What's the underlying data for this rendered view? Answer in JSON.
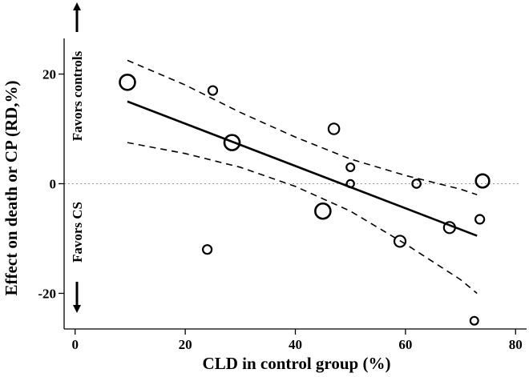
{
  "chart_data": {
    "type": "scatter",
    "title": "",
    "xlabel": "CLD in control group (%)",
    "ylabel": "Effect on death or CP (RD,%)",
    "xlim": [
      -2,
      82
    ],
    "ylim": [
      -26.5,
      26.5
    ],
    "xticks": [
      0,
      20,
      40,
      60,
      80
    ],
    "yticks": [
      -20,
      0,
      20
    ],
    "xtick_labels": [
      "0",
      "20",
      "40",
      "60",
      "80"
    ],
    "ytick_labels": [
      "-20",
      "0",
      "20"
    ],
    "annotations": {
      "favors_controls": "Favors controls",
      "favors_cs": "Favors CS"
    },
    "points": [
      {
        "x": 9.5,
        "y": 18.5,
        "weight": 3
      },
      {
        "x": 25,
        "y": 17,
        "weight": 1
      },
      {
        "x": 28.5,
        "y": 7.5,
        "weight": 3
      },
      {
        "x": 47,
        "y": 10,
        "weight": 1.5
      },
      {
        "x": 50,
        "y": 3,
        "weight": 0.8
      },
      {
        "x": 50,
        "y": 0,
        "weight": 0.7
      },
      {
        "x": 62,
        "y": 0,
        "weight": 0.9
      },
      {
        "x": 74,
        "y": 0.5,
        "weight": 2.3
      },
      {
        "x": 45,
        "y": -5,
        "weight": 3
      },
      {
        "x": 24,
        "y": -12,
        "weight": 1
      },
      {
        "x": 59,
        "y": -10.5,
        "weight": 1.6
      },
      {
        "x": 68,
        "y": -8,
        "weight": 1.6
      },
      {
        "x": 73.5,
        "y": -6.5,
        "weight": 1
      },
      {
        "x": 72.5,
        "y": -25,
        "weight": 0.8
      }
    ],
    "fit_line": {
      "x": [
        9.5,
        73
      ],
      "y": [
        15,
        -9.5
      ]
    },
    "ci_upper": {
      "x": [
        9.5,
        20,
        30,
        40,
        50,
        60,
        70,
        73
      ],
      "y": [
        22.5,
        18,
        13,
        8.5,
        4.5,
        1.5,
        -1,
        -2
      ]
    },
    "ci_lower": {
      "x": [
        9.5,
        20,
        30,
        40,
        50,
        60,
        70,
        73
      ],
      "y": [
        7.5,
        5.5,
        3,
        -0.5,
        -5,
        -11,
        -17.5,
        -20
      ]
    }
  }
}
